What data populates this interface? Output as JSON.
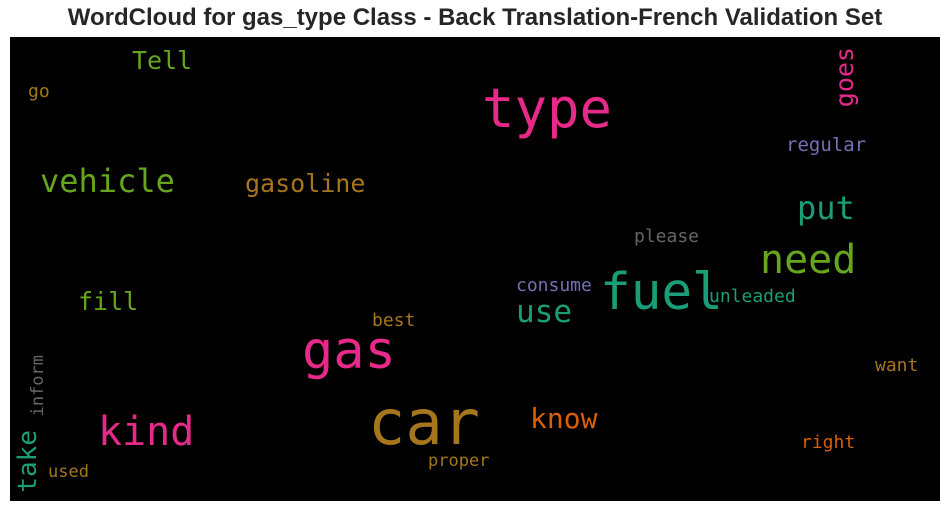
{
  "chart_data": {
    "type": "wordcloud",
    "title": "WordCloud for gas_type Class - Back Translation-French Validation Set",
    "background": "#000000",
    "words": [
      {
        "text": "car",
        "weight": 1.0,
        "color": "#a6761d",
        "orientation": "horizontal"
      },
      {
        "text": "type",
        "weight": 0.87,
        "color": "#e7298a",
        "orientation": "horizontal"
      },
      {
        "text": "gas",
        "weight": 0.84,
        "color": "#e7298a",
        "orientation": "horizontal"
      },
      {
        "text": "fuel",
        "weight": 0.83,
        "color": "#1b9e77",
        "orientation": "horizontal"
      },
      {
        "text": "kind",
        "weight": 0.65,
        "color": "#e7298a",
        "orientation": "horizontal"
      },
      {
        "text": "need",
        "weight": 0.65,
        "color": "#66a61e",
        "orientation": "horizontal"
      },
      {
        "text": "vehicle",
        "weight": 0.53,
        "color": "#66a61e",
        "orientation": "horizontal"
      },
      {
        "text": "put",
        "weight": 0.52,
        "color": "#1b9e77",
        "orientation": "horizontal"
      },
      {
        "text": "use",
        "weight": 0.5,
        "color": "#1b9e77",
        "orientation": "horizontal"
      },
      {
        "text": "know",
        "weight": 0.45,
        "color": "#d95f02",
        "orientation": "horizontal"
      },
      {
        "text": "take",
        "weight": 0.42,
        "color": "#1b9e77",
        "orientation": "vertical"
      },
      {
        "text": "gasoline",
        "weight": 0.4,
        "color": "#a6761d",
        "orientation": "horizontal"
      },
      {
        "text": "fill",
        "weight": 0.4,
        "color": "#66a61e",
        "orientation": "horizontal"
      },
      {
        "text": "goes",
        "weight": 0.4,
        "color": "#e7298a",
        "orientation": "vertical"
      },
      {
        "text": "Tell",
        "weight": 0.4,
        "color": "#66a61e",
        "orientation": "horizontal"
      },
      {
        "text": "regular",
        "weight": 0.3,
        "color": "#7570b3",
        "orientation": "horizontal"
      },
      {
        "text": "please",
        "weight": 0.3,
        "color": "#666666",
        "orientation": "horizontal"
      },
      {
        "text": "consume",
        "weight": 0.3,
        "color": "#7570b3",
        "orientation": "horizontal"
      },
      {
        "text": "unleaded",
        "weight": 0.3,
        "color": "#1b9e77",
        "orientation": "horizontal"
      },
      {
        "text": "best",
        "weight": 0.3,
        "color": "#a6761d",
        "orientation": "horizontal"
      },
      {
        "text": "want",
        "weight": 0.3,
        "color": "#a6761d",
        "orientation": "horizontal"
      },
      {
        "text": "inform",
        "weight": 0.3,
        "color": "#666666",
        "orientation": "vertical"
      },
      {
        "text": "right",
        "weight": 0.3,
        "color": "#d95f02",
        "orientation": "horizontal"
      },
      {
        "text": "proper",
        "weight": 0.3,
        "color": "#a6761d",
        "orientation": "horizontal"
      },
      {
        "text": "used",
        "weight": 0.3,
        "color": "#a6761d",
        "orientation": "horizontal"
      },
      {
        "text": "go",
        "weight": 0.28,
        "color": "#a6761d",
        "orientation": "horizontal"
      }
    ]
  }
}
